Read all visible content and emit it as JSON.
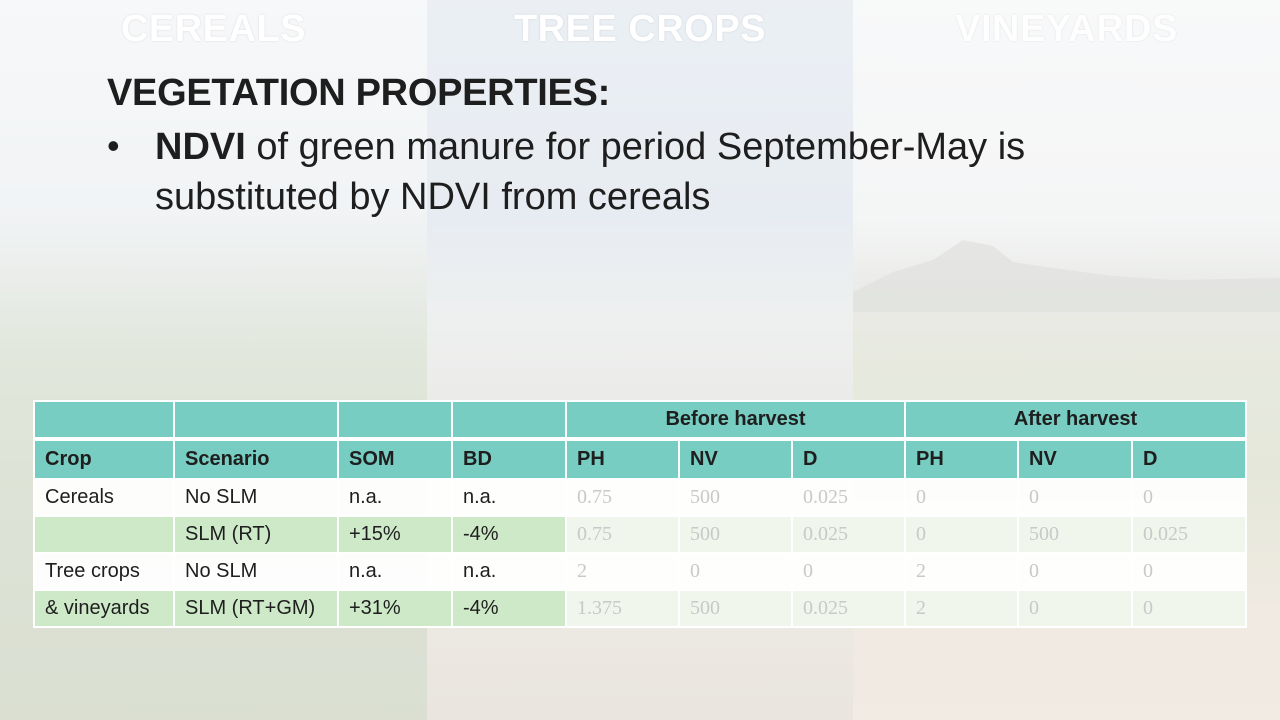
{
  "captions": {
    "cereals": "CEREALS",
    "tree_crops": "TREE CROPS",
    "vineyards": "VINEYARDS"
  },
  "title": "VEGETATION PROPERTIES:",
  "bullet": {
    "marker": "•",
    "bold": "NDVI",
    "text": " of green manure for period September-May is substituted by NDVI from cereals"
  },
  "table": {
    "group_headers": [
      "",
      "",
      "",
      "",
      "Before harvest",
      "After harvest"
    ],
    "headers": [
      "Crop",
      "Scenario",
      "SOM",
      "BD",
      "PH",
      "NV",
      "D",
      "PH",
      "NV",
      "D"
    ],
    "rows": [
      [
        "Cereals",
        "No SLM",
        "n.a.",
        "n.a.",
        "0.75",
        "500",
        "0.025",
        "0",
        "0",
        "0"
      ],
      [
        "",
        "SLM (RT)",
        "+15%",
        "-4%",
        "0.75",
        "500",
        "0.025",
        "0",
        "500",
        "0.025"
      ],
      [
        "Tree crops",
        "No SLM",
        "n.a.",
        "n.a.",
        "2",
        "0",
        "0",
        "2",
        "0",
        "0"
      ],
      [
        "& vineyards",
        "SLM (RT+GM)",
        "+31%",
        "-4%",
        "1.375",
        "500",
        "0.025",
        "2",
        "0",
        "0"
      ]
    ]
  },
  "colors": {
    "header_teal": "#78cdc2",
    "highlight_green": "#cde9c8",
    "text_dark": "#1e1e1e",
    "value_gray": "#c9c9c9"
  }
}
